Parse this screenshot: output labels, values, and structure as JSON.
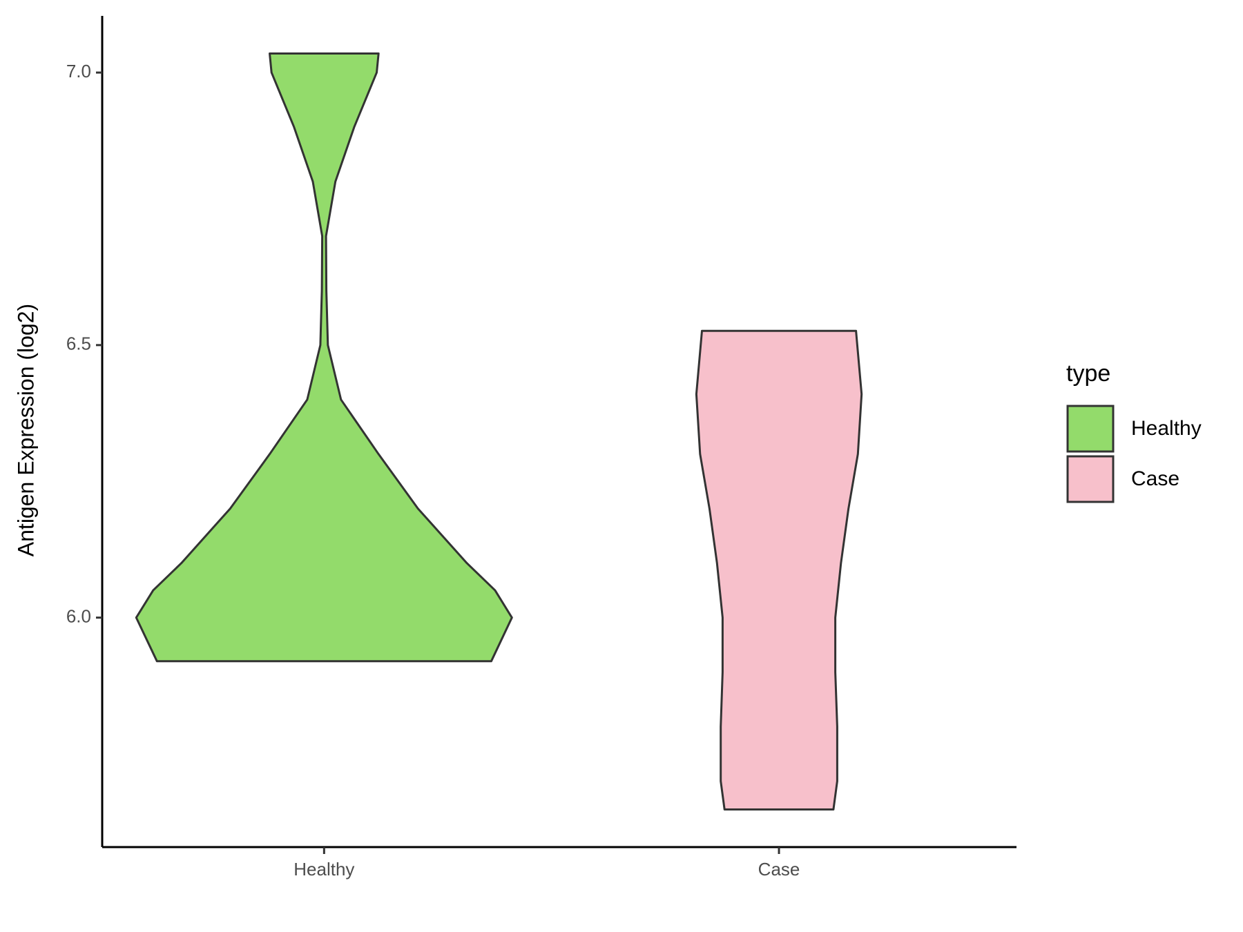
{
  "chart_data": {
    "type": "violin",
    "y_label": "Antigen Expression (log2)",
    "categories": [
      "Healthy",
      "Case"
    ],
    "legend_title": "type",
    "legend_position": "right",
    "series": [
      {
        "name": "Healthy",
        "color": "#93db6b",
        "y": [
          5.92,
          6.0,
          6.05,
          6.1,
          6.2,
          6.3,
          6.4,
          6.5,
          6.6,
          6.7,
          6.8,
          6.9,
          7.0,
          7.035
        ],
        "density": [
          0.89,
          1.0,
          0.91,
          0.76,
          0.5,
          0.29,
          0.09,
          0.02,
          0.012,
          0.01,
          0.06,
          0.16,
          0.28,
          0.29
        ]
      },
      {
        "name": "Case",
        "color": "#f7c0cb",
        "y": [
          5.648,
          5.7,
          5.8,
          5.9,
          6.0,
          6.1,
          6.2,
          6.3,
          6.41,
          6.526
        ],
        "density": [
          0.29,
          0.31,
          0.31,
          0.3,
          0.3,
          0.33,
          0.37,
          0.42,
          0.44,
          0.41
        ]
      }
    ],
    "ylim": [
      5.579,
      7.104
    ],
    "yticks": [
      {
        "value": 6,
        "label": "6.0"
      },
      6.5,
      {
        "value": 7,
        "label": "7.0"
      }
    ],
    "grid": false
  }
}
